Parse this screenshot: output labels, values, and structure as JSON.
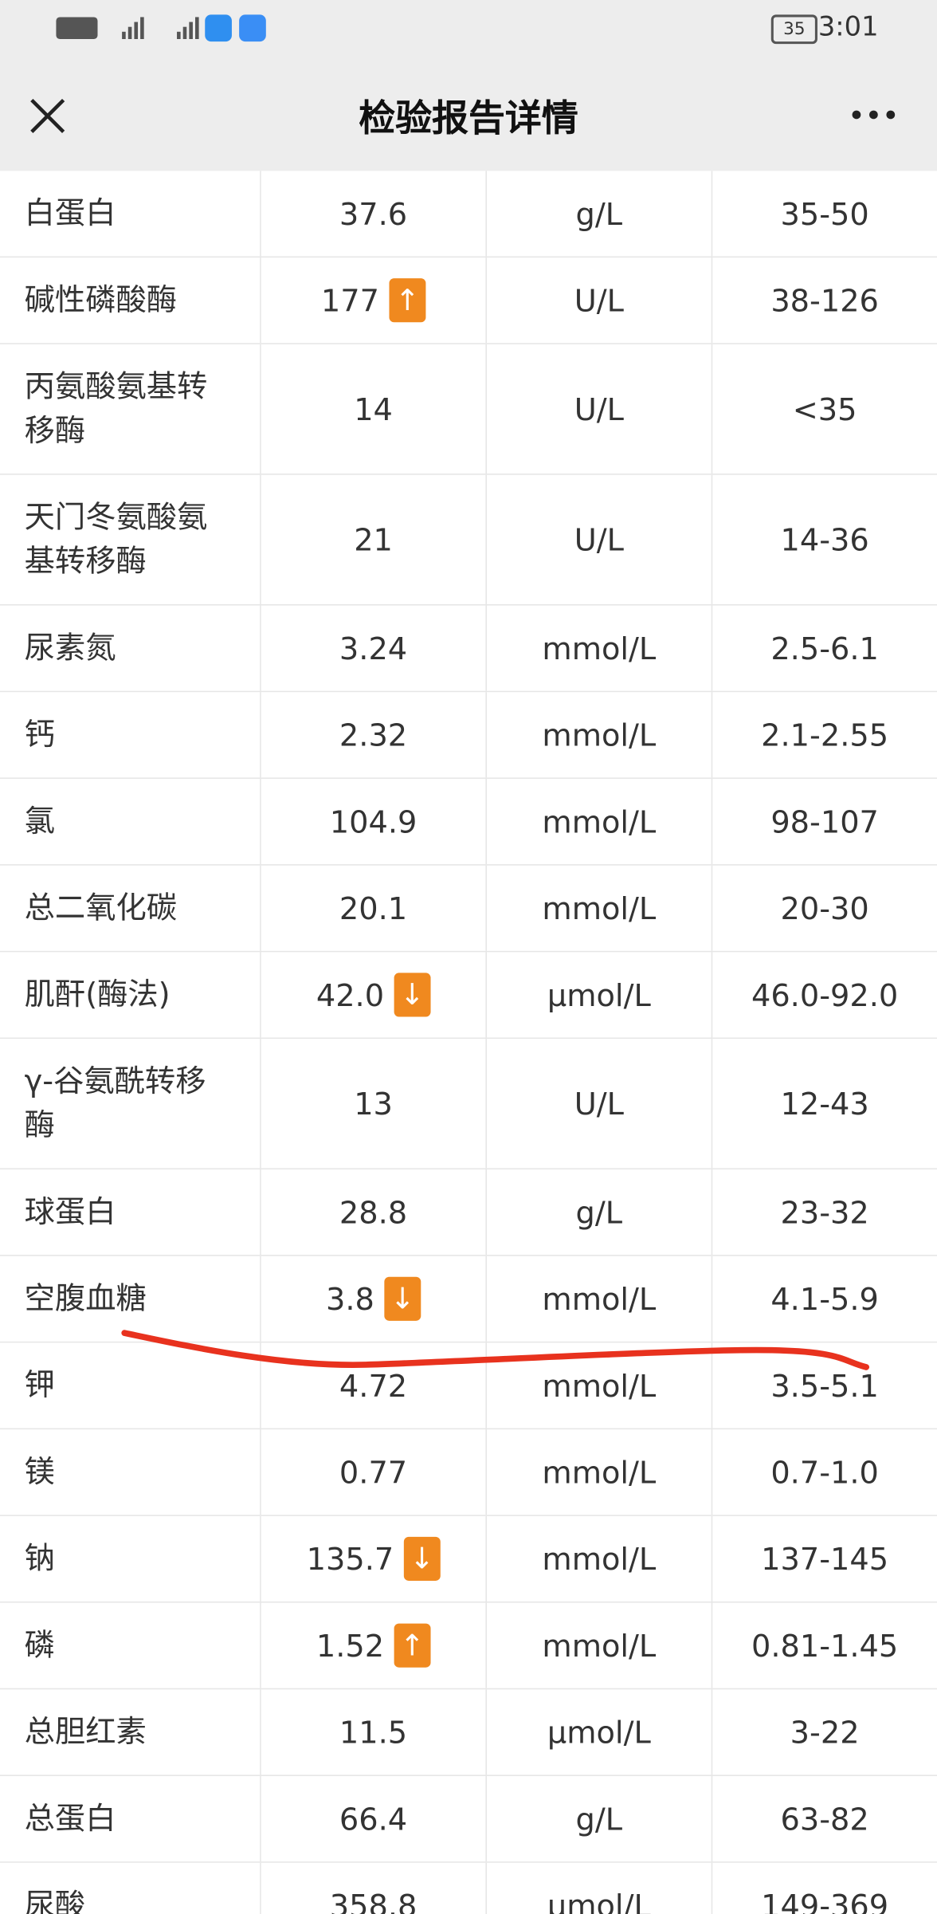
{
  "status_bar": {
    "time": "3:01",
    "battery": "35"
  },
  "header": {
    "title": "检验报告详情"
  },
  "table": {
    "rows": [
      {
        "name": "白蛋白",
        "value": "37.6",
        "unit": "g/L",
        "range": "35-50"
      },
      {
        "name": "碱性磷酸酶",
        "value": "177",
        "flag": "↑",
        "unit": "U/L",
        "range": "38-126"
      },
      {
        "name": "丙氨酸氨基转移酶",
        "value": "14",
        "unit": "U/L",
        "range": "<35"
      },
      {
        "name": "天门冬氨酸氨基转移酶",
        "value": "21",
        "unit": "U/L",
        "range": "14-36"
      },
      {
        "name": "尿素氮",
        "value": "3.24",
        "unit": "mmol/L",
        "range": "2.5-6.1"
      },
      {
        "name": "钙",
        "value": "2.32",
        "unit": "mmol/L",
        "range": "2.1-2.55"
      },
      {
        "name": "氯",
        "value": "104.9",
        "unit": "mmol/L",
        "range": "98-107"
      },
      {
        "name": "总二氧化碳",
        "value": "20.1",
        "unit": "mmol/L",
        "range": "20-30"
      },
      {
        "name": "肌酐(酶法)",
        "value": "42.0",
        "flag": "↓",
        "unit": "µmol/L",
        "range": "46.0-92.0"
      },
      {
        "name": "γ-谷氨酰转移酶",
        "value": "13",
        "unit": "U/L",
        "range": "12-43"
      },
      {
        "name": "球蛋白",
        "value": "28.8",
        "unit": "g/L",
        "range": "23-32"
      },
      {
        "name": "空腹血糖",
        "value": "3.8",
        "flag": "↓",
        "unit": "mmol/L",
        "range": "4.1-5.9"
      },
      {
        "name": "钾",
        "value": "4.72",
        "unit": "mmol/L",
        "range": "3.5-5.1"
      },
      {
        "name": "镁",
        "value": "0.77",
        "unit": "mmol/L",
        "range": "0.7-1.0"
      },
      {
        "name": "钠",
        "value": "135.7",
        "flag": "↓",
        "unit": "mmol/L",
        "range": "137-145"
      },
      {
        "name": "磷",
        "value": "1.52",
        "flag": "↑",
        "unit": "mmol/L",
        "range": "0.81-1.45"
      },
      {
        "name": "总胆红素",
        "value": "11.5",
        "unit": "µmol/L",
        "range": "3-22"
      },
      {
        "name": "总蛋白",
        "value": "66.4",
        "unit": "g/L",
        "range": "63-82"
      },
      {
        "name": "尿酸",
        "value": "358.8",
        "unit": "µmol/L",
        "range": "149-369"
      }
    ]
  }
}
